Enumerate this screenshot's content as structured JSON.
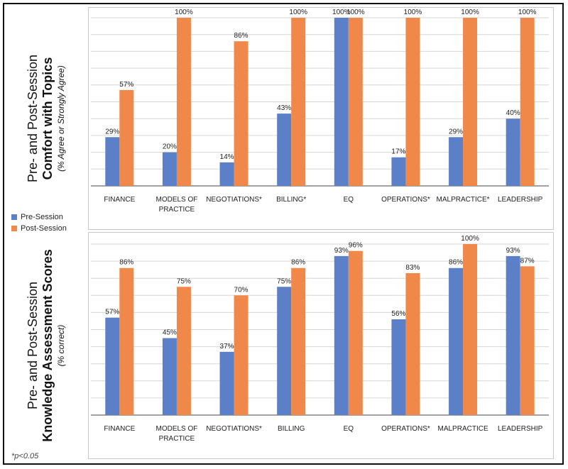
{
  "colors": {
    "pre": "#5b80c8",
    "post": "#f0884a",
    "grid": "#d6d6d6",
    "axis": "#6b6b6b"
  },
  "legend": {
    "pre_label": "Pre-Session",
    "post_label": "Post-Session"
  },
  "footnote": "*p<0.05",
  "chart_data": [
    {
      "type": "bar",
      "title_line1": "Pre- and Post-Session",
      "title_line2": "Comfort with Topics",
      "subtitle": "(% Agree or Strongly Agree)",
      "categories": [
        [
          "FINANCE"
        ],
        [
          "MODELS OF",
          "PRACTICE"
        ],
        [
          "NEGOTIATIONS*"
        ],
        [
          "BILLING*"
        ],
        [
          "EQ"
        ],
        [
          "OPERATIONS*"
        ],
        [
          "MALPRACTICE*"
        ],
        [
          "LEADERSHIP"
        ]
      ],
      "series": [
        {
          "name": "Pre-Session",
          "values": [
            29,
            20,
            14,
            43,
            100,
            17,
            29,
            40
          ],
          "labels": [
            "29%",
            "20%",
            "14%",
            "43%",
            "100%",
            "17%",
            "29%",
            "40%"
          ]
        },
        {
          "name": "Post-Session",
          "values": [
            57,
            100,
            86,
            100,
            100,
            100,
            100,
            100
          ],
          "labels": [
            "57%",
            "100%",
            "86%",
            "100%",
            "100%",
            "100%",
            "100%",
            "100%"
          ]
        }
      ],
      "ylim": [
        0,
        100
      ],
      "grid_step": 10
    },
    {
      "type": "bar",
      "title_line1": "Pre- and Post-Session",
      "title_line2": "Knowledge Assessment Scores",
      "subtitle": "(% correct)",
      "categories": [
        [
          "FINANCE"
        ],
        [
          "MODELS OF",
          "PRACTICE"
        ],
        [
          "NEGOTIATIONS*"
        ],
        [
          "BILLING"
        ],
        [
          "EQ"
        ],
        [
          "OPERATIONS*"
        ],
        [
          "MALPRACTICE"
        ],
        [
          "LEADERSHIP"
        ]
      ],
      "series": [
        {
          "name": "Pre-Session",
          "values": [
            57,
            45,
            37,
            75,
            93,
            56,
            86,
            93
          ],
          "labels": [
            "57%",
            "45%",
            "37%",
            "75%",
            "93%",
            "56%",
            "86%",
            "93%"
          ]
        },
        {
          "name": "Post-Session",
          "values": [
            86,
            75,
            70,
            86,
            96,
            83,
            100,
            87
          ],
          "labels": [
            "86%",
            "75%",
            "70%",
            "86%",
            "96%",
            "83%",
            "100%",
            "87%"
          ]
        }
      ],
      "ylim": [
        0,
        100
      ],
      "grid_step": 10
    }
  ]
}
